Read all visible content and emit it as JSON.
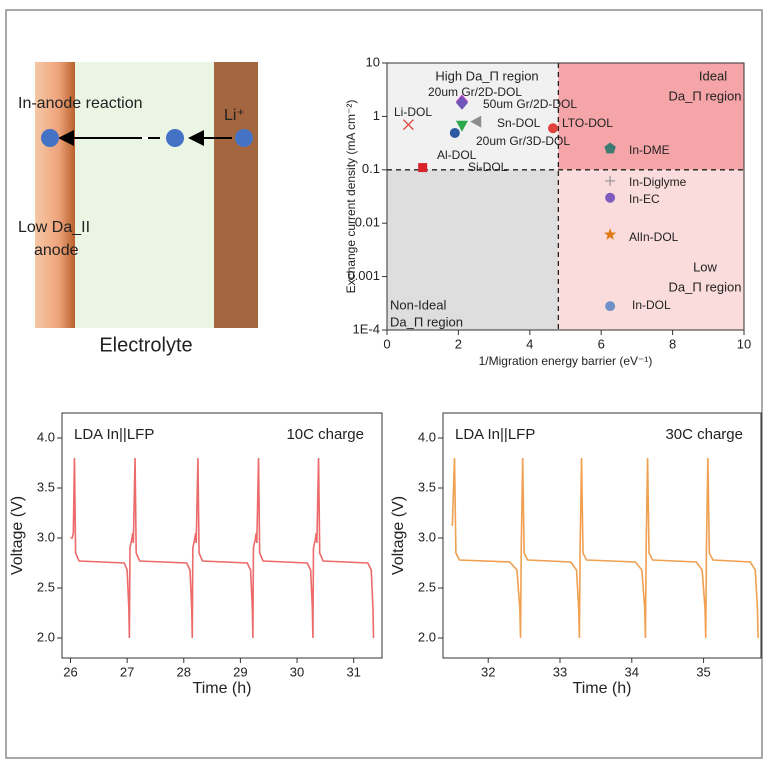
{
  "diagram": {
    "reaction_label": "In-anode reaction",
    "ion_label": "Li⁺",
    "anode_label": [
      "Low Da_II",
      "anode"
    ],
    "electrolyte_label": "Electrolyte"
  },
  "chart_data": [
    {
      "type": "scatter",
      "xlabel": "1/Migration energy barrier (eV⁻¹)",
      "ylabel": "Exchange current density (mA cm⁻²)",
      "log_y": true,
      "xlim": [
        0,
        10
      ],
      "ylim": [
        0.0001,
        10
      ],
      "xticks": [
        0,
        2,
        4,
        6,
        8,
        10
      ],
      "yticks": [
        {
          "value": 0.0001,
          "label": "1E-4"
        },
        0.001,
        0.01,
        0.1,
        1,
        10
      ],
      "threshold_x": 4.8,
      "threshold_y": 0.1,
      "region_labels": [
        [
          "High Da_Π region"
        ],
        [
          "Ideal",
          "Da_Π region"
        ],
        [
          "Non-Ideal",
          "Da_Π region"
        ],
        [
          "Low",
          "Da_Π region"
        ]
      ],
      "series": [
        {
          "name": "Li-DOL",
          "color": "#e0443c",
          "marker": "x",
          "x": [
            0.6
          ],
          "values": [
            0.7
          ]
        },
        {
          "name": "20um Gr/2D-DOL",
          "color": "#d02fc4",
          "marker": "diamond",
          "x": [
            2.1
          ],
          "values": [
            1.9
          ]
        },
        {
          "name": "50um Gr/2D-DOL",
          "color": "#6f56b8",
          "marker": "diamond",
          "x": [
            2.1
          ],
          "values": [
            1.8
          ]
        },
        {
          "name": "Sn-DOL",
          "color": "#8c8c8c",
          "marker": "triangle-left",
          "x": [
            2.5
          ],
          "values": [
            0.8
          ]
        },
        {
          "name": "LTO-DOL",
          "color": "#e0443c",
          "marker": "circle",
          "x": [
            4.65
          ],
          "values": [
            0.6
          ]
        },
        {
          "name": "20um Gr/3D-DOL",
          "color": "#2aa84a",
          "marker": "triangle-down",
          "x": [
            2.1
          ],
          "values": [
            0.67
          ]
        },
        {
          "name": "Al-DOL",
          "color": "#2c5aa0",
          "marker": "circle",
          "x": [
            1.9
          ],
          "values": [
            0.49
          ]
        },
        {
          "name": "Si-DOL",
          "color": "#d8232a",
          "marker": "square",
          "x": [
            1.0
          ],
          "values": [
            0.11
          ]
        },
        {
          "name": "In-DME",
          "color": "#3d7a72",
          "marker": "pentagon",
          "x": [
            6.25
          ],
          "values": [
            0.25
          ]
        },
        {
          "name": "In-Diglyme",
          "color": "#9a9a9a",
          "marker": "plus",
          "x": [
            6.25
          ],
          "values": [
            0.062
          ]
        },
        {
          "name": "In-EC",
          "color": "#7e5cc0",
          "marker": "circle",
          "x": [
            6.25
          ],
          "values": [
            0.03
          ]
        },
        {
          "name": "AlIn-DOL",
          "color": "#e07a10",
          "marker": "star",
          "x": [
            6.25
          ],
          "values": [
            0.0061
          ]
        },
        {
          "name": "In-DOL",
          "color": "#6f8fc8",
          "marker": "circle",
          "x": [
            6.25
          ],
          "values": [
            0.00028
          ]
        }
      ]
    },
    {
      "type": "line",
      "title": "LDA In||LFP",
      "annotation": "10C charge",
      "xlabel": "Time (h)",
      "ylabel": "Voltage (V)",
      "color": "#ec6a6a",
      "xlim": [
        25.85,
        31.5
      ],
      "ylim": [
        1.8,
        4.25
      ],
      "xticks": [
        26,
        27,
        28,
        29,
        30,
        31
      ],
      "yticks": [
        {
          "value": 2,
          "label": "2.0"
        },
        2.5,
        {
          "value": 3,
          "label": "3.0"
        },
        3.5,
        {
          "value": 4,
          "label": "4.0"
        }
      ],
      "x": [
        26.0,
        26.03,
        26.05,
        26.07,
        26.09,
        26.15,
        26.95,
        27.0,
        27.03,
        27.04,
        27.05,
        27.08,
        27.1,
        27.11,
        27.14,
        27.16,
        27.22,
        28.05,
        28.11,
        28.14,
        28.15,
        28.16,
        28.19,
        28.21,
        28.22,
        28.25,
        28.27,
        28.33,
        29.12,
        29.18,
        29.21,
        29.22,
        29.23,
        29.26,
        29.28,
        29.29,
        29.32,
        29.34,
        29.4,
        30.18,
        30.24,
        30.27,
        30.28,
        30.29,
        30.32,
        30.34,
        30.35,
        30.38,
        30.4,
        30.46,
        31.25,
        31.31,
        31.34,
        31.35
      ],
      "values": [
        3.0,
        3.0,
        3.05,
        3.8,
        2.85,
        2.77,
        2.75,
        2.68,
        2.3,
        2.0,
        2.9,
        2.98,
        3.05,
        2.95,
        3.8,
        2.85,
        2.77,
        2.75,
        2.68,
        2.3,
        2.0,
        2.9,
        2.98,
        3.05,
        2.95,
        3.8,
        2.85,
        2.77,
        2.75,
        2.68,
        2.3,
        2.0,
        2.9,
        2.98,
        3.05,
        2.95,
        3.8,
        2.85,
        2.77,
        2.75,
        2.68,
        2.3,
        2.0,
        2.9,
        2.98,
        3.05,
        2.95,
        3.8,
        2.85,
        2.77,
        2.75,
        2.68,
        2.3,
        2.0
      ]
    },
    {
      "type": "line",
      "title": "LDA In||LFP",
      "annotation": "30C charge",
      "xlabel": "Time (h)",
      "ylabel": "Voltage (V)",
      "color": "#f0a050",
      "xlim": [
        31.37,
        35.8
      ],
      "ylim": [
        1.8,
        4.25
      ],
      "xticks": [
        32,
        33,
        34,
        35
      ],
      "yticks": [
        {
          "value": 2,
          "label": "2.0"
        },
        2.5,
        {
          "value": 3,
          "label": "3.0"
        },
        3.5,
        {
          "value": 4,
          "label": "4.0"
        }
      ],
      "x": [
        31.5,
        31.53,
        31.55,
        31.6,
        32.3,
        32.4,
        32.44,
        32.45,
        32.46,
        32.48,
        32.5,
        32.55,
        33.15,
        33.23,
        33.26,
        33.27,
        33.28,
        33.3,
        33.32,
        33.37,
        34.05,
        34.14,
        34.18,
        34.19,
        34.2,
        34.22,
        34.24,
        34.29,
        34.9,
        34.98,
        35.02,
        35.03,
        35.04,
        35.06,
        35.08,
        35.13,
        35.65,
        35.72,
        35.75,
        35.76
      ],
      "values": [
        3.12,
        3.8,
        2.85,
        2.78,
        2.76,
        2.68,
        2.3,
        2.0,
        2.9,
        3.8,
        2.85,
        2.78,
        2.76,
        2.68,
        2.3,
        2.0,
        2.9,
        3.8,
        2.85,
        2.78,
        2.76,
        2.68,
        2.3,
        2.0,
        2.9,
        3.8,
        2.85,
        2.78,
        2.76,
        2.68,
        2.3,
        2.0,
        2.9,
        3.8,
        2.85,
        2.78,
        2.76,
        2.68,
        2.3,
        2.0
      ]
    }
  ]
}
